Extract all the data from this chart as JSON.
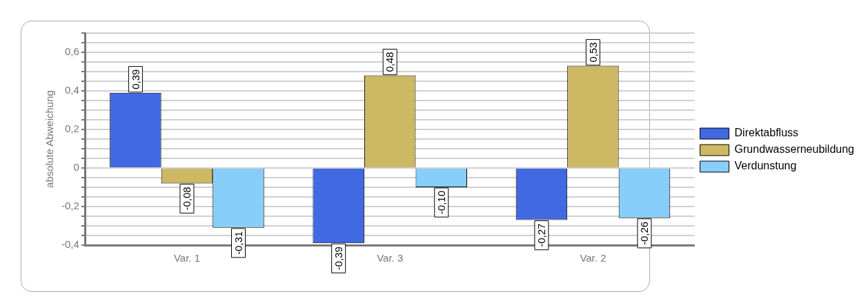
{
  "chart_data": {
    "type": "bar",
    "ylabel": "absolute Abweichung",
    "categories": [
      "Var. 1",
      "Var. 3",
      "Var. 2"
    ],
    "series": [
      {
        "name": "Direktabfluss",
        "color": "#4169e1",
        "values": [
          0.39,
          -0.39,
          -0.27
        ],
        "value_labels": [
          "0,39",
          "-0,39",
          "-0,27"
        ]
      },
      {
        "name": "Grundwasserneubildung",
        "color": "#cdb864",
        "values": [
          -0.08,
          0.48,
          0.53
        ],
        "value_labels": [
          "-0,08",
          "0,48",
          "0,53"
        ]
      },
      {
        "name": "Verdunstung",
        "color": "#87cefa",
        "values": [
          -0.31,
          -0.1,
          -0.26
        ],
        "value_labels": [
          "-0,31",
          "-0,10",
          "-0,26"
        ]
      }
    ],
    "ylim": [
      -0.4,
      0.7
    ],
    "yticks": [
      {
        "value": -0.4,
        "label": "-0,4"
      },
      {
        "value": -0.35,
        "label": null
      },
      {
        "value": -0.3,
        "label": null
      },
      {
        "value": -0.25,
        "label": null
      },
      {
        "value": -0.2,
        "label": "-0,2"
      },
      {
        "value": -0.15,
        "label": null
      },
      {
        "value": -0.1,
        "label": null
      },
      {
        "value": -0.05,
        "label": null
      },
      0,
      {
        "value": 0.05,
        "label": null
      },
      {
        "value": 0.1,
        "label": null
      },
      {
        "value": 0.15,
        "label": null
      },
      {
        "value": 0.2,
        "label": "0,2"
      },
      {
        "value": 0.25,
        "label": null
      },
      {
        "value": 0.3,
        "label": null
      },
      {
        "value": 0.35,
        "label": null
      },
      {
        "value": 0.4,
        "label": "0,4"
      },
      {
        "value": 0.45,
        "label": null
      },
      {
        "value": 0.5,
        "label": null
      },
      {
        "value": 0.55,
        "label": null
      },
      {
        "value": 0.6,
        "label": "0,6"
      },
      {
        "value": 0.65,
        "label": null
      },
      {
        "value": 0.7,
        "label": null
      }
    ],
    "grid": "y",
    "legend": "right"
  }
}
